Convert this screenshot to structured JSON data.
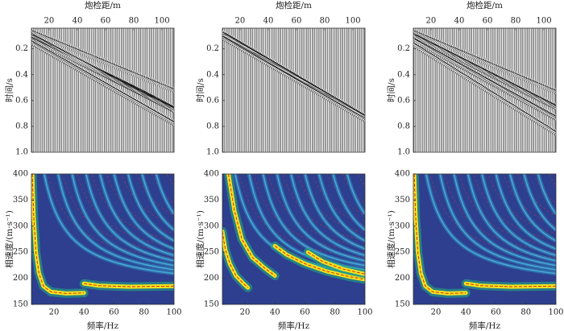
{
  "chart_data": [
    {
      "type": "wiggle",
      "xlabel": "炮检距/m",
      "ylabel": "时间/s",
      "xlim": [
        7.5,
        108.5
      ],
      "ylim": [
        0.04,
        1.0
      ],
      "xticks": [
        20,
        40,
        60,
        80,
        100
      ],
      "yticks": [
        0.2,
        0.4,
        0.6,
        0.8,
        {
          "value": 1,
          "label": "1.0"
        }
      ]
    },
    {
      "type": "wiggle",
      "xlabel": "炮检距/m",
      "ylabel": "时间/s",
      "xlim": [
        7.5,
        108.5
      ],
      "ylim": [
        0.04,
        1.0
      ],
      "xticks": [
        20,
        40,
        60,
        80,
        100
      ],
      "yticks": [
        0.2,
        0.4,
        0.6,
        0.8,
        {
          "value": 1,
          "label": "1.0"
        }
      ]
    },
    {
      "type": "wiggle",
      "xlabel": "炮检距/m",
      "ylabel": "时间/s",
      "xlim": [
        7.5,
        108.5
      ],
      "ylim": [
        0.04,
        1.0
      ],
      "xticks": [
        20,
        40,
        60,
        80,
        100
      ],
      "yticks": [
        0.2,
        0.4,
        0.6,
        0.8,
        {
          "value": 1,
          "label": "1.0"
        }
      ]
    },
    {
      "type": "dispersion",
      "xlabel": "频率/Hz",
      "ylabel": "相速度/(m·s⁻¹)",
      "xlim": [
        5,
        100
      ],
      "ylim": [
        150,
        400
      ],
      "xticks": [
        20,
        40,
        60,
        80,
        100
      ],
      "yticks": [
        150,
        200,
        250,
        300,
        350,
        400
      ]
    },
    {
      "type": "dispersion",
      "xlabel": "频率/Hz",
      "ylabel": "相速度/(m·s⁻¹)",
      "xlim": [
        5,
        100
      ],
      "ylim": [
        150,
        400
      ],
      "xticks": [
        20,
        40,
        60,
        80,
        100
      ],
      "yticks": [
        150,
        200,
        250,
        300,
        350,
        400
      ]
    },
    {
      "type": "dispersion",
      "xlabel": "频率/Hz",
      "ylabel": "相速度/(m·s⁻¹)",
      "xlim": [
        5,
        100
      ],
      "ylim": [
        150,
        400
      ],
      "xticks": [
        20,
        40,
        60,
        80,
        100
      ],
      "yticks": [
        150,
        200,
        250,
        300,
        350,
        400
      ]
    }
  ]
}
